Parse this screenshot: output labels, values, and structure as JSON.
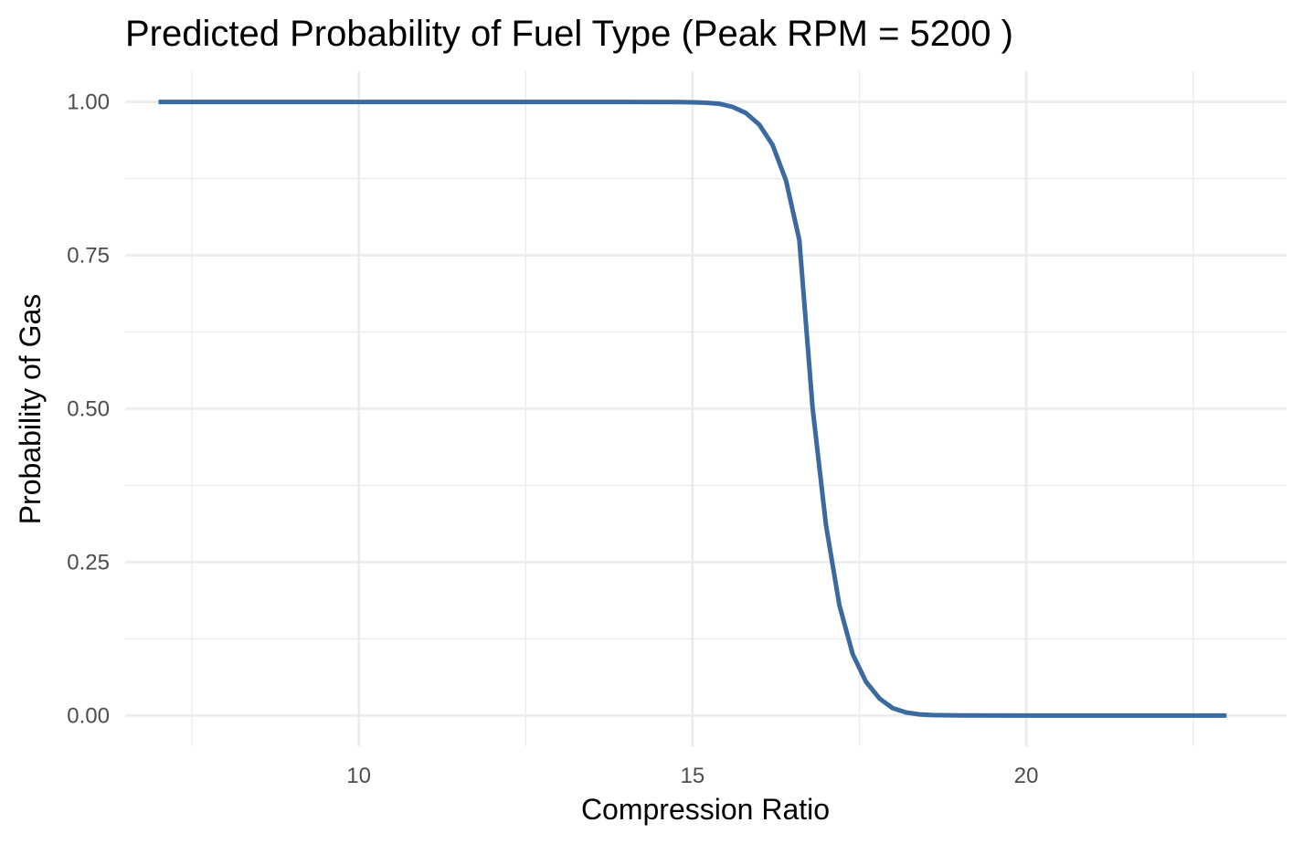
{
  "chart_data": {
    "type": "line",
    "title": "Predicted Probability of Fuel Type (Peak RPM = 5200 )",
    "xlabel": "Compression Ratio",
    "ylabel": "Probability of Gas",
    "xlim": [
      6.5,
      23.9
    ],
    "ylim": [
      -0.05,
      1.05
    ],
    "x_ticks": [
      10,
      15,
      20
    ],
    "x_tick_labels": [
      "10",
      "15",
      "20"
    ],
    "x_minor_ticks": [
      7.5,
      12.5,
      17.5,
      22.5
    ],
    "y_ticks": [
      0,
      0.25,
      0.5,
      0.75,
      1
    ],
    "y_tick_labels": [
      "0.00",
      "0.25",
      "0.50",
      "0.75",
      "1.00"
    ],
    "y_minor_ticks": [
      0.125,
      0.375,
      0.625,
      0.875
    ],
    "grid": true,
    "legend": "none",
    "series": [
      {
        "color": "#3a6aa0",
        "x": [
          7.0,
          12.0,
          14.0,
          14.8,
          15.0,
          15.2,
          15.4,
          15.6,
          15.8,
          16.0,
          16.2,
          16.4,
          16.6,
          16.8,
          17.0,
          17.2,
          17.4,
          17.6,
          17.8,
          18.0,
          18.2,
          18.4,
          18.6,
          19.0,
          20.0,
          21.0,
          23.0
        ],
        "y": [
          1.0,
          1.0,
          1.0,
          0.9997,
          0.9994,
          0.9987,
          0.997,
          0.992,
          0.982,
          0.963,
          0.93,
          0.872,
          0.775,
          0.5,
          0.31,
          0.18,
          0.1,
          0.055,
          0.028,
          0.012,
          0.005,
          0.002,
          0.0008,
          0.0002,
          0.0,
          0.0,
          0.0
        ]
      }
    ]
  }
}
